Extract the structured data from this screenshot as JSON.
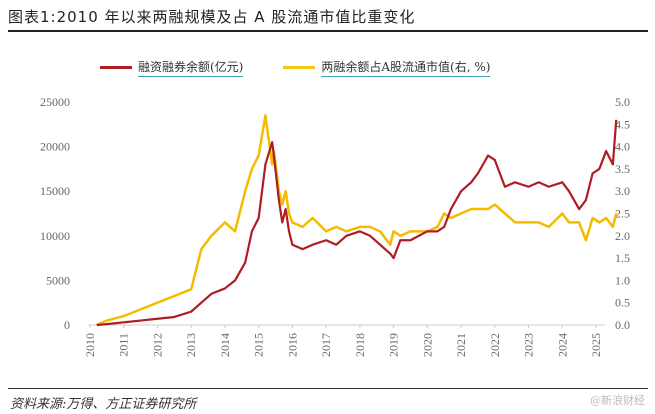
{
  "title": "图表1:2010 年以来两融规模及占 A 股流通市值比重变化",
  "legend": {
    "series1_label": "融资融券余额(亿元)",
    "series2_label": "两融余额占A股流通市值(右, %)"
  },
  "source": "资料来源:万得、方正证券研究所",
  "watermark": "@新浪财经",
  "colors": {
    "series1": "#b01c24",
    "series2": "#f5b800",
    "axis_text": "#666666"
  },
  "chart_data": {
    "type": "line",
    "title": "2010年以来两融规模及占A股流通市值比重变化",
    "xlabel": "",
    "ylabel": "融资融券余额(亿元)",
    "y2label": "两融余额占A股流通市值(%)",
    "x_ticks": [
      "2010",
      "2011",
      "2012",
      "2013",
      "2014",
      "2015",
      "2016",
      "2017",
      "2018",
      "2019",
      "2020",
      "2021",
      "2022",
      "2023",
      "2024",
      "2025"
    ],
    "y_ticks": [
      0,
      5000,
      10000,
      15000,
      20000,
      25000
    ],
    "y2_ticks": [
      "0.0",
      "0.5",
      "1.0",
      "1.5",
      "2.0",
      "2.5",
      "3.0",
      "3.5",
      "4.0",
      "4.5",
      "5.0"
    ],
    "ylim": [
      0,
      25000
    ],
    "y2lim": [
      0,
      5
    ],
    "grid": false,
    "legend_position": "top",
    "series": [
      {
        "name": "融资融券余额(亿元)",
        "axis": "left",
        "x": [
          2010.2,
          2010.5,
          2011.0,
          2011.5,
          2012.0,
          2012.5,
          2013.0,
          2013.3,
          2013.6,
          2014.0,
          2014.3,
          2014.6,
          2014.8,
          2015.0,
          2015.2,
          2015.4,
          2015.45,
          2015.6,
          2015.7,
          2015.8,
          2015.9,
          2016.0,
          2016.3,
          2016.6,
          2017.0,
          2017.3,
          2017.6,
          2018.0,
          2018.3,
          2018.6,
          2018.9,
          2019.0,
          2019.2,
          2019.5,
          2020.0,
          2020.3,
          2020.5,
          2020.7,
          2021.0,
          2021.3,
          2021.5,
          2021.8,
          2022.0,
          2022.3,
          2022.6,
          2023.0,
          2023.3,
          2023.6,
          2024.0,
          2024.2,
          2024.5,
          2024.7,
          2024.9,
          2025.1,
          2025.3,
          2025.5,
          2025.6
        ],
        "values": [
          0,
          100,
          300,
          500,
          700,
          900,
          1500,
          2500,
          3500,
          4100,
          5000,
          7000,
          10500,
          12000,
          18000,
          20500,
          19000,
          14000,
          11500,
          13000,
          10500,
          9000,
          8500,
          9000,
          9500,
          9000,
          10000,
          10500,
          10000,
          9000,
          8000,
          7500,
          9500,
          9500,
          10500,
          10500,
          11000,
          13000,
          15000,
          16000,
          17000,
          19000,
          18500,
          15500,
          16000,
          15500,
          16000,
          15500,
          16000,
          15000,
          13000,
          14000,
          17000,
          17500,
          19500,
          18000,
          23000
        ]
      },
      {
        "name": "两融余额占A股流通市值(右, %)",
        "axis": "right",
        "x": [
          2010.2,
          2010.5,
          2011.0,
          2011.5,
          2012.0,
          2012.5,
          2013.0,
          2013.3,
          2013.6,
          2014.0,
          2014.3,
          2014.6,
          2014.8,
          2015.0,
          2015.2,
          2015.4,
          2015.45,
          2015.6,
          2015.7,
          2015.8,
          2015.9,
          2016.0,
          2016.3,
          2016.6,
          2017.0,
          2017.3,
          2017.6,
          2018.0,
          2018.3,
          2018.6,
          2018.9,
          2019.0,
          2019.2,
          2019.5,
          2020.0,
          2020.3,
          2020.5,
          2020.7,
          2021.0,
          2021.3,
          2021.5,
          2021.8,
          2022.0,
          2022.3,
          2022.6,
          2023.0,
          2023.3,
          2023.6,
          2024.0,
          2024.2,
          2024.5,
          2024.7,
          2024.9,
          2025.1,
          2025.3,
          2025.5,
          2025.6
        ],
        "values": [
          0.0,
          0.1,
          0.2,
          0.35,
          0.5,
          0.65,
          0.8,
          1.7,
          2.0,
          2.3,
          2.1,
          3.0,
          3.5,
          3.8,
          4.7,
          3.6,
          3.9,
          3.0,
          2.7,
          3.0,
          2.5,
          2.3,
          2.2,
          2.4,
          2.1,
          2.2,
          2.1,
          2.2,
          2.2,
          2.1,
          1.8,
          2.1,
          2.0,
          2.1,
          2.1,
          2.2,
          2.5,
          2.4,
          2.5,
          2.6,
          2.6,
          2.6,
          2.7,
          2.5,
          2.3,
          2.3,
          2.3,
          2.2,
          2.5,
          2.3,
          2.3,
          1.9,
          2.4,
          2.3,
          2.4,
          2.2,
          2.5
        ]
      }
    ]
  }
}
